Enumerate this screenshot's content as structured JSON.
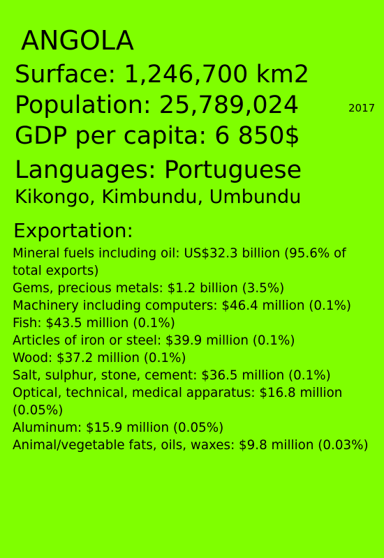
{
  "country": "ANGOLA",
  "surface": "Surface:  1,246,700 km2",
  "population": "Population:   25,789,024",
  "population_year": "2017",
  "gdp": "GDP per capita:  6 850$",
  "languages": "Languages: Portuguese",
  "languages_other": "Kikongo, Kimbundu, Umbundu",
  "exportation": {
    "title": "Exportation:",
    "items": [
      "Mineral fuels including oil: US$32.3 billion (95.6% of total exports)",
      "Gems, precious metals: $1.2 billion (3.5%)",
      "Machinery including computers: $46.4 million (0.1%)",
      "Fish: $43.5 million (0.1%)",
      "Articles of iron or steel: $39.9 million (0.1%)",
      "Wood: $37.2 million (0.1%)",
      "Salt, sulphur, stone, cement: $36.5 million (0.1%)",
      "Optical, technical, medical apparatus: $16.8 million (0.05%)",
      "Aluminum: $15.9 million (0.05%)",
      "Animal/vegetable fats, oils, waxes: $9.8 million (0.03%)"
    ]
  },
  "colors": {
    "background": "#7fff00",
    "text": "#000000"
  }
}
